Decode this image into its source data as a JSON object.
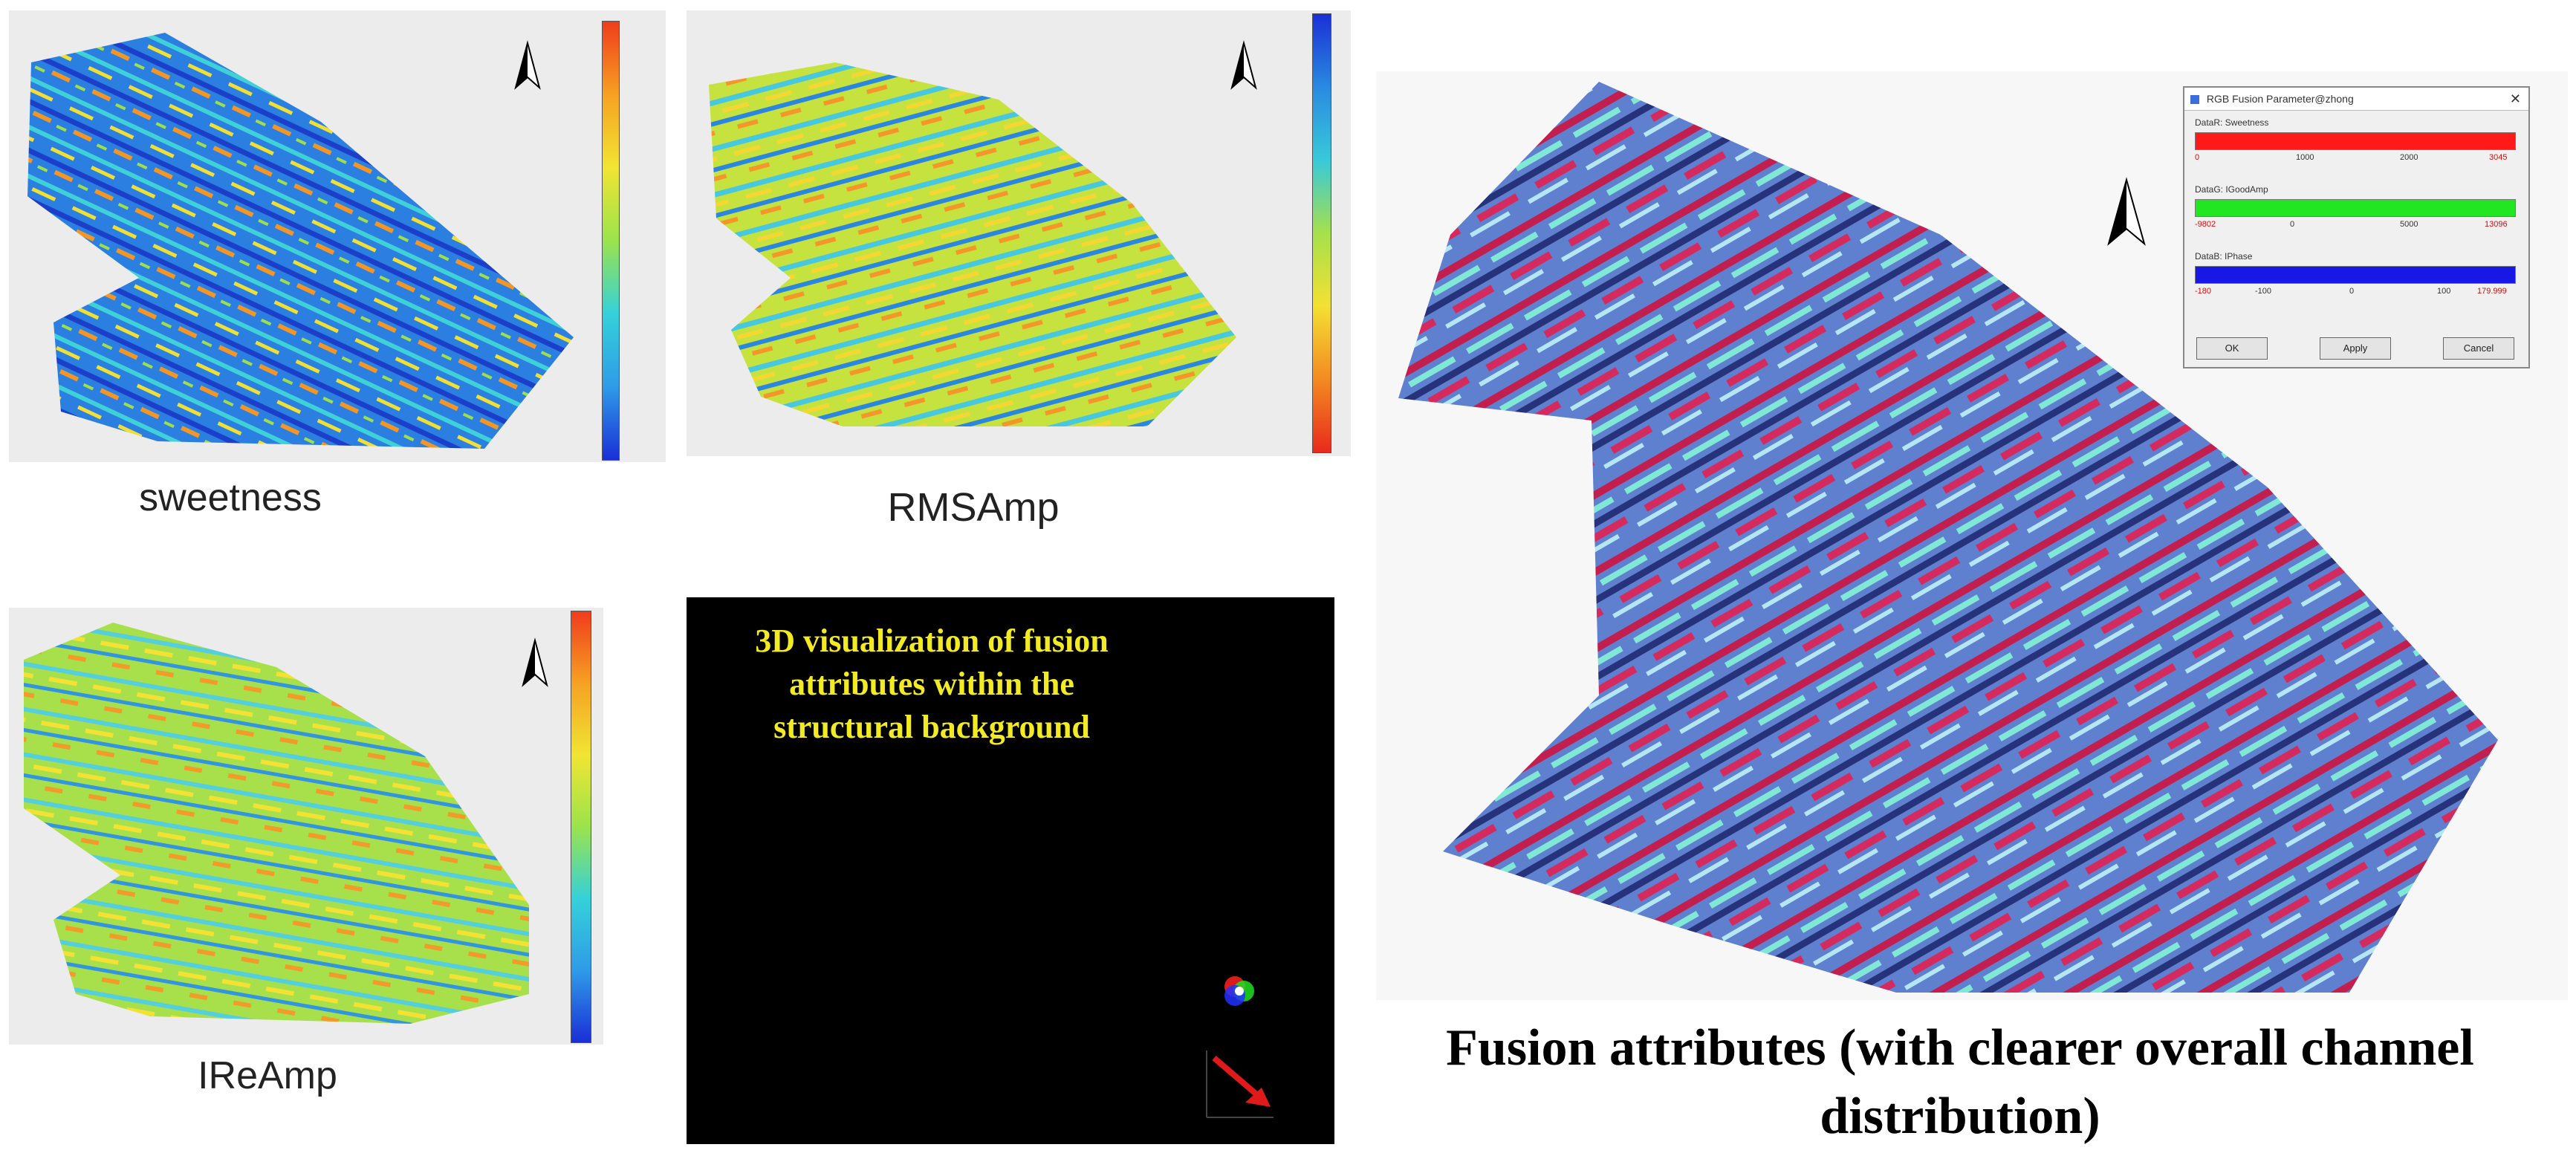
{
  "panels": {
    "sweetness": {
      "caption": "sweetness"
    },
    "rmsamp": {
      "caption": "RMSAmp"
    },
    "ireamp": {
      "caption": "IReAmp"
    }
  },
  "viz3d": {
    "text": "3D visualization of fusion\nattributes within the\nstructural background"
  },
  "fusion": {
    "caption": "Fusion attributes (with clearer overall channel\ndistribution)"
  },
  "dialog": {
    "title": "RGB Fusion Parameter@zhong",
    "channels": [
      {
        "label": "DataR: Sweetness",
        "color": "#ff1a1a",
        "ticks": [
          "0",
          "1000",
          "2000",
          "3045"
        ]
      },
      {
        "label": "DataG: IGoodAmp",
        "color": "#22e622",
        "ticks": [
          "-9802",
          "0",
          "5000",
          "13096"
        ]
      },
      {
        "label": "DataB: IPhase",
        "color": "#1717e6",
        "ticks": [
          "-180",
          "-100",
          "0",
          "100",
          "179.999"
        ]
      }
    ],
    "buttons": {
      "ok": "OK",
      "apply": "Apply",
      "cancel": "Cancel"
    }
  },
  "colors": {
    "sweetness_scale": [
      "#1a2fd6",
      "#2f9be8",
      "#35d1d9",
      "#9be34c",
      "#f1e533",
      "#f6a123",
      "#f03c1c"
    ],
    "rmsamp_scale": [
      "#e82a1c",
      "#f38a22",
      "#f4e033",
      "#a6e04c",
      "#39c9d9",
      "#2a8ae0",
      "#1a2fd6"
    ],
    "fusion_palette": [
      "#c21e4e",
      "#6f8fd6",
      "#7fe8d2",
      "#26327a",
      "#e0f0ff"
    ]
  }
}
